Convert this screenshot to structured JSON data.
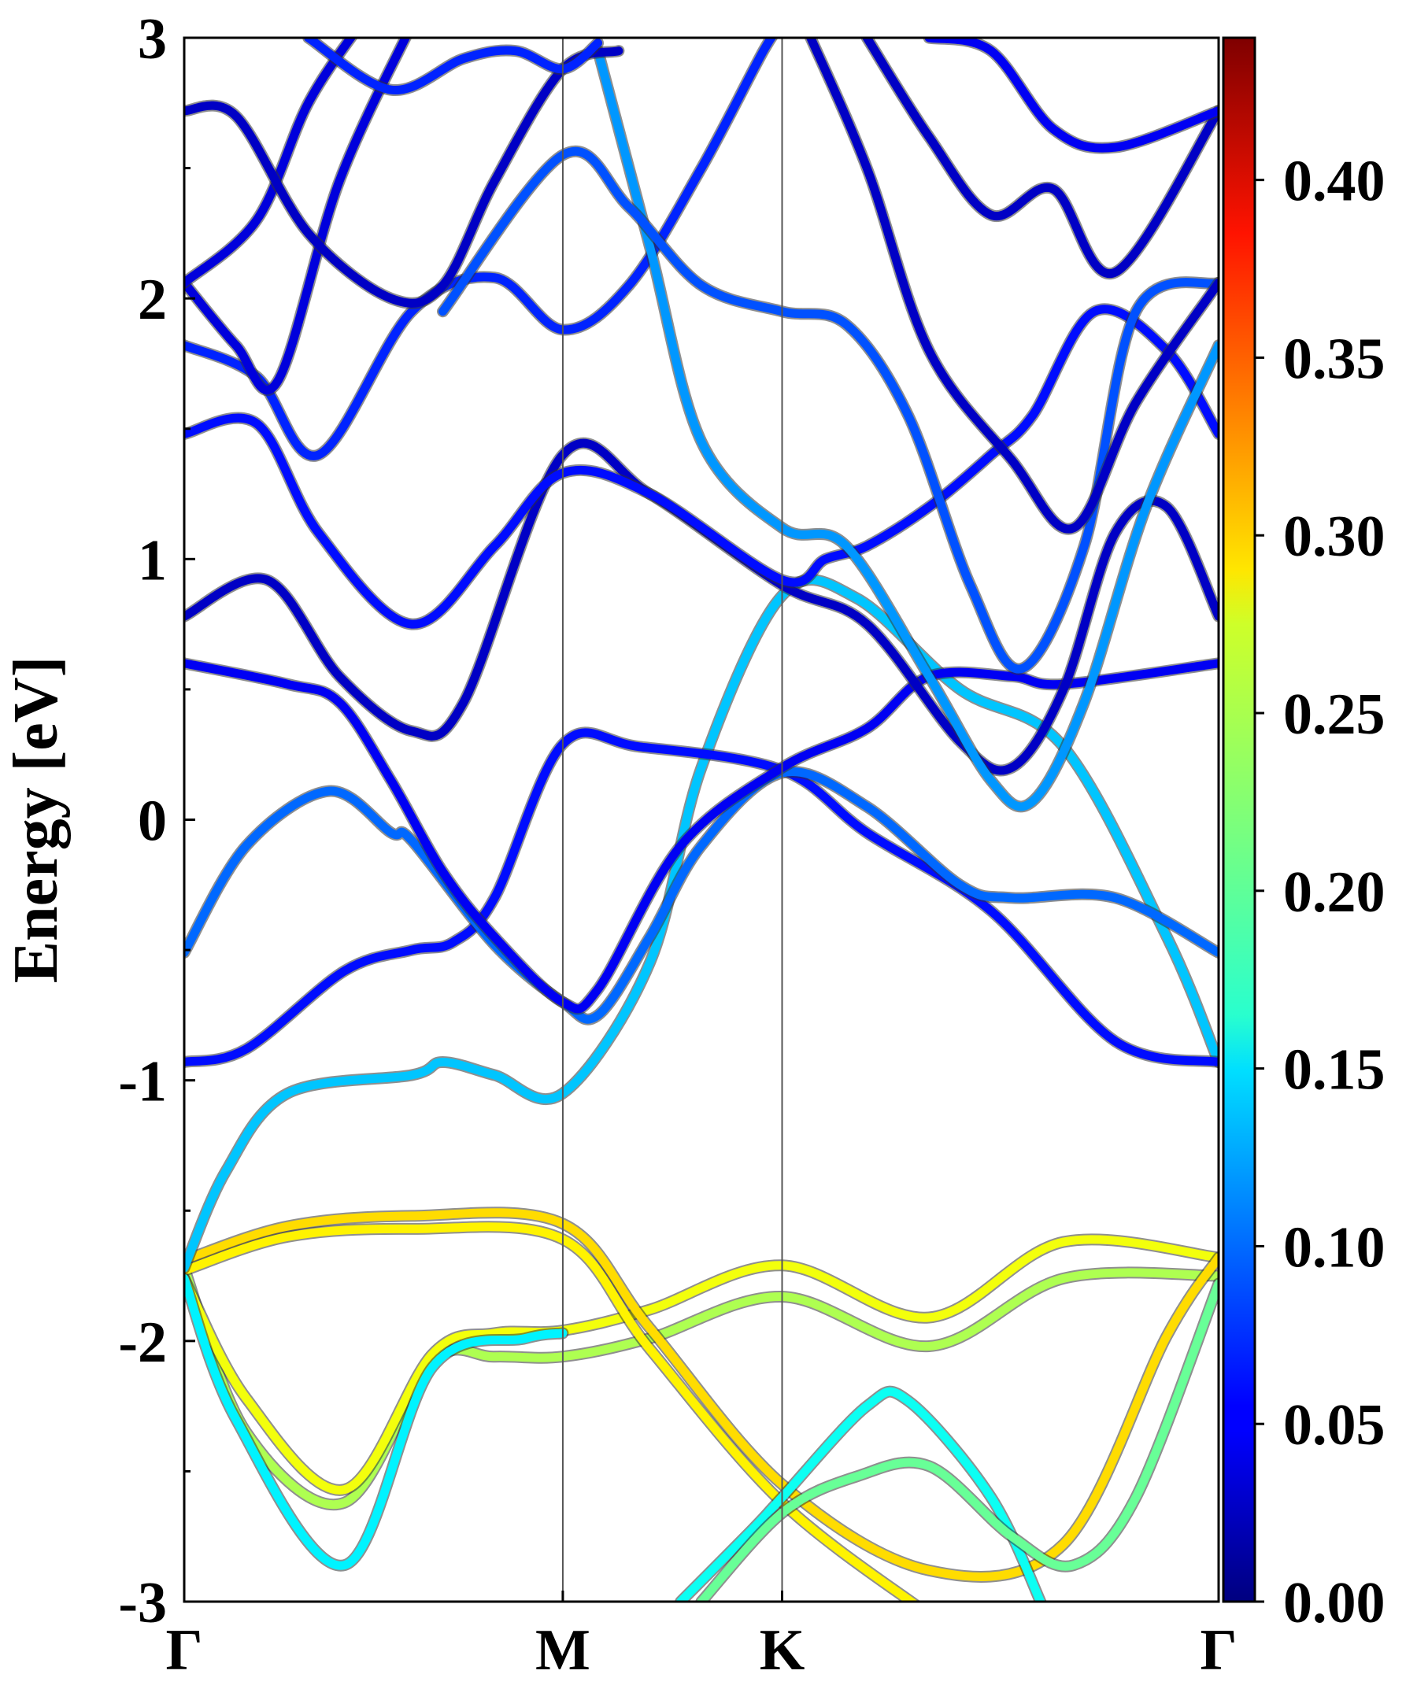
{
  "chart_data": {
    "type": "line",
    "title": "",
    "xlabel": "",
    "ylabel": "Energy [eV]",
    "ylim": [
      -3,
      3
    ],
    "yticks": [
      "3",
      "2",
      "1",
      "0",
      "-1",
      "-2",
      "-3"
    ],
    "ytick_values": [
      3,
      2,
      1,
      0,
      -1,
      -2,
      -3
    ],
    "high_symmetry_points": [
      {
        "label": "Γ",
        "k": 0.0
      },
      {
        "label": "M",
        "k": 0.366
      },
      {
        "label": "K",
        "k": 0.578
      },
      {
        "label": "Γ",
        "k": 1.0
      }
    ],
    "colorbar": {
      "colormap": "jet",
      "min": 0.0,
      "max": 0.44,
      "ticks": [
        "0.00",
        "0.05",
        "0.10",
        "0.15",
        "0.20",
        "0.25",
        "0.30",
        "0.35",
        "0.40"
      ],
      "tick_values": [
        0.0,
        0.05,
        0.1,
        0.15,
        0.2,
        0.25,
        0.3,
        0.35,
        0.4
      ]
    },
    "bands": [
      {
        "weight": 0.24,
        "points": [
          [
            0,
            -1.72
          ],
          [
            0.06,
            -2.35
          ],
          [
            0.155,
            -2.62
          ],
          [
            0.24,
            -2.08
          ],
          [
            0.3,
            -2.06
          ],
          [
            0.366,
            -2.06
          ],
          [
            0.45,
            -1.99
          ],
          [
            0.578,
            -1.83
          ],
          [
            0.72,
            -2.02
          ],
          [
            0.85,
            -1.76
          ],
          [
            1.0,
            -1.75
          ]
        ]
      },
      {
        "weight": 0.27,
        "points": [
          [
            0,
            -1.76
          ],
          [
            0.06,
            -2.22
          ],
          [
            0.155,
            -2.57
          ],
          [
            0.24,
            -2.05
          ],
          [
            0.3,
            -1.97
          ],
          [
            0.366,
            -1.96
          ],
          [
            0.45,
            -1.88
          ],
          [
            0.578,
            -1.71
          ],
          [
            0.72,
            -1.91
          ],
          [
            0.85,
            -1.62
          ],
          [
            1.0,
            -1.68
          ]
        ]
      },
      {
        "weight": 0.29,
        "points": [
          [
            0,
            -1.69
          ],
          [
            0.1,
            -1.56
          ],
          [
            0.22,
            -1.52
          ],
          [
            0.366,
            -1.55
          ],
          [
            0.45,
            -1.95
          ],
          [
            0.578,
            -2.55
          ],
          [
            0.72,
            -2.88
          ],
          [
            0.85,
            -2.78
          ],
          [
            0.95,
            -1.98
          ],
          [
            1.0,
            -1.68
          ]
        ]
      },
      {
        "weight": 0.28,
        "points": [
          [
            0,
            -1.73
          ],
          [
            0.1,
            -1.6
          ],
          [
            0.22,
            -1.57
          ],
          [
            0.366,
            -1.61
          ],
          [
            0.45,
            -2.03
          ],
          [
            0.578,
            -2.62
          ],
          [
            0.72,
            -3.05
          ]
        ]
      },
      {
        "weight": 0.16,
        "points": [
          [
            0,
            -1.76
          ],
          [
            0.05,
            -2.3
          ],
          [
            0.155,
            -2.86
          ],
          [
            0.24,
            -2.1
          ],
          [
            0.33,
            -1.99
          ],
          [
            0.366,
            -1.97
          ]
        ]
      },
      {
        "weight": 0.14,
        "points": [
          [
            0,
            -1.72
          ],
          [
            0.04,
            -1.35
          ],
          [
            0.1,
            -1.05
          ],
          [
            0.22,
            -0.98
          ],
          [
            0.25,
            -0.93
          ],
          [
            0.3,
            -0.98
          ],
          [
            0.366,
            -1.05
          ],
          [
            0.45,
            -0.55
          ],
          [
            0.5,
            0.2
          ],
          [
            0.578,
            0.86
          ],
          [
            0.65,
            0.85
          ],
          [
            0.75,
            0.5
          ],
          [
            0.85,
            0.28
          ],
          [
            0.95,
            -0.45
          ],
          [
            1.0,
            -0.93
          ]
        ]
      },
      {
        "weight": 0.17,
        "points": [
          [
            0.48,
            -3.0
          ],
          [
            0.55,
            -2.72
          ],
          [
            0.578,
            -2.6
          ],
          [
            0.66,
            -2.25
          ],
          [
            0.7,
            -2.23
          ],
          [
            0.78,
            -2.6
          ],
          [
            0.83,
            -3.02
          ]
        ]
      },
      {
        "weight": 0.21,
        "points": [
          [
            0.5,
            -3.0
          ],
          [
            0.578,
            -2.66
          ],
          [
            0.65,
            -2.52
          ],
          [
            0.72,
            -2.48
          ],
          [
            0.8,
            -2.75
          ],
          [
            0.86,
            -2.86
          ],
          [
            0.92,
            -2.6
          ],
          [
            1.0,
            -1.78
          ]
        ]
      },
      {
        "weight": 0.06,
        "points": [
          [
            0,
            -0.93
          ],
          [
            0.06,
            -0.88
          ],
          [
            0.155,
            -0.58
          ],
          [
            0.22,
            -0.5
          ],
          [
            0.26,
            -0.47
          ],
          [
            0.3,
            -0.3
          ],
          [
            0.366,
            0.29
          ],
          [
            0.44,
            0.28
          ],
          [
            0.578,
            0.19
          ],
          [
            0.66,
            -0.05
          ],
          [
            0.78,
            -0.35
          ],
          [
            0.9,
            -0.85
          ],
          [
            1.0,
            -0.93
          ]
        ]
      },
      {
        "weight": 0.1,
        "points": [
          [
            0,
            -0.51
          ],
          [
            0.06,
            -0.1
          ],
          [
            0.14,
            0.11
          ],
          [
            0.2,
            -0.05
          ],
          [
            0.22,
            -0.08
          ],
          [
            0.3,
            -0.48
          ],
          [
            0.366,
            -0.7
          ],
          [
            0.4,
            -0.75
          ],
          [
            0.45,
            -0.45
          ],
          [
            0.5,
            -0.1
          ],
          [
            0.578,
            0.18
          ],
          [
            0.66,
            0.05
          ],
          [
            0.75,
            -0.25
          ],
          [
            0.8,
            -0.3
          ],
          [
            0.9,
            -0.3
          ],
          [
            1.0,
            -0.51
          ]
        ]
      },
      {
        "weight": 0.05,
        "points": [
          [
            0,
            0.6
          ],
          [
            0.1,
            0.52
          ],
          [
            0.15,
            0.45
          ],
          [
            0.2,
            0.15
          ],
          [
            0.25,
            -0.2
          ],
          [
            0.3,
            -0.45
          ],
          [
            0.366,
            -0.7
          ],
          [
            0.4,
            -0.65
          ],
          [
            0.48,
            -0.1
          ],
          [
            0.578,
            0.2
          ],
          [
            0.66,
            0.35
          ],
          [
            0.72,
            0.55
          ],
          [
            0.8,
            0.55
          ],
          [
            0.85,
            0.52
          ],
          [
            1.0,
            0.6
          ]
        ]
      },
      {
        "weight": 0.03,
        "points": [
          [
            0,
            0.78
          ],
          [
            0.08,
            0.92
          ],
          [
            0.15,
            0.55
          ],
          [
            0.22,
            0.34
          ],
          [
            0.27,
            0.45
          ],
          [
            0.366,
            1.4
          ],
          [
            0.45,
            1.25
          ],
          [
            0.578,
            0.9
          ],
          [
            0.66,
            0.75
          ],
          [
            0.75,
            0.3
          ],
          [
            0.8,
            0.2
          ],
          [
            0.85,
            0.5
          ],
          [
            0.9,
            1.1
          ],
          [
            0.95,
            1.2
          ],
          [
            1.0,
            0.78
          ]
        ]
      },
      {
        "weight": 0.06,
        "points": [
          [
            0,
            1.48
          ],
          [
            0.07,
            1.52
          ],
          [
            0.13,
            1.1
          ],
          [
            0.22,
            0.75
          ],
          [
            0.3,
            1.05
          ],
          [
            0.366,
            1.33
          ],
          [
            0.45,
            1.25
          ],
          [
            0.578,
            0.92
          ],
          [
            0.62,
            1.0
          ],
          [
            0.66,
            1.05
          ],
          [
            0.72,
            1.2
          ],
          [
            0.78,
            1.4
          ],
          [
            0.82,
            1.55
          ],
          [
            0.88,
            1.95
          ],
          [
            0.95,
            1.8
          ],
          [
            1.0,
            1.48
          ]
        ]
      },
      {
        "weight": 0.07,
        "points": [
          [
            0,
            1.82
          ],
          [
            0.07,
            1.7
          ],
          [
            0.13,
            1.4
          ],
          [
            0.22,
            1.95
          ],
          [
            0.3,
            2.08
          ],
          [
            0.366,
            1.88
          ],
          [
            0.43,
            2.05
          ],
          [
            0.5,
            2.5
          ],
          [
            0.56,
            2.95
          ],
          [
            0.578,
            3.05
          ]
        ]
      },
      {
        "weight": 0.12,
        "points": [
          [
            0.4,
            2.95
          ],
          [
            0.45,
            2.2
          ],
          [
            0.5,
            1.45
          ],
          [
            0.578,
            1.12
          ],
          [
            0.64,
            1.05
          ],
          [
            0.72,
            0.55
          ],
          [
            0.78,
            0.15
          ],
          [
            0.82,
            0.07
          ],
          [
            0.87,
            0.45
          ],
          [
            0.93,
            1.2
          ],
          [
            1.0,
            1.82
          ]
        ]
      },
      {
        "weight": 0.04,
        "points": [
          [
            0,
            2.06
          ],
          [
            0.05,
            1.82
          ],
          [
            0.09,
            1.68
          ],
          [
            0.15,
            2.45
          ],
          [
            0.22,
            3.05
          ]
        ]
      },
      {
        "weight": 0.04,
        "points": [
          [
            0,
            2.06
          ],
          [
            0.07,
            2.3
          ],
          [
            0.12,
            2.75
          ],
          [
            0.17,
            3.05
          ]
        ]
      },
      {
        "weight": 0.09,
        "points": [
          [
            0.25,
            1.95
          ],
          [
            0.366,
            2.55
          ],
          [
            0.43,
            2.35
          ],
          [
            0.5,
            2.05
          ],
          [
            0.578,
            1.95
          ],
          [
            0.64,
            1.9
          ],
          [
            0.7,
            1.55
          ],
          [
            0.76,
            0.9
          ],
          [
            0.81,
            0.58
          ],
          [
            0.87,
            1.05
          ],
          [
            0.92,
            1.95
          ],
          [
            1.0,
            2.06
          ]
        ]
      },
      {
        "weight": 0.03,
        "points": [
          [
            0,
            2.72
          ],
          [
            0.05,
            2.7
          ],
          [
            0.12,
            2.25
          ],
          [
            0.2,
            2.0
          ],
          [
            0.25,
            2.05
          ],
          [
            0.3,
            2.45
          ],
          [
            0.366,
            2.88
          ],
          [
            0.42,
            2.95
          ]
        ]
      },
      {
        "weight": 0.07,
        "points": [
          [
            0.12,
            3.0
          ],
          [
            0.2,
            2.8
          ],
          [
            0.27,
            2.92
          ],
          [
            0.32,
            2.95
          ],
          [
            0.366,
            2.88
          ],
          [
            0.4,
            2.98
          ]
        ]
      },
      {
        "weight": 0.03,
        "points": [
          [
            0.6,
            3.05
          ],
          [
            0.66,
            2.5
          ],
          [
            0.72,
            1.8
          ],
          [
            0.8,
            1.38
          ],
          [
            0.86,
            1.12
          ],
          [
            0.92,
            1.6
          ],
          [
            1.0,
            2.06
          ]
        ]
      },
      {
        "weight": 0.03,
        "points": [
          [
            0.66,
            3.0
          ],
          [
            0.72,
            2.62
          ],
          [
            0.78,
            2.32
          ],
          [
            0.84,
            2.42
          ],
          [
            0.9,
            2.1
          ],
          [
            1.0,
            2.72
          ]
        ]
      },
      {
        "weight": 0.05,
        "points": [
          [
            0.72,
            3.0
          ],
          [
            0.78,
            2.95
          ],
          [
            0.84,
            2.65
          ],
          [
            0.9,
            2.58
          ],
          [
            1.0,
            2.72
          ]
        ]
      }
    ]
  }
}
